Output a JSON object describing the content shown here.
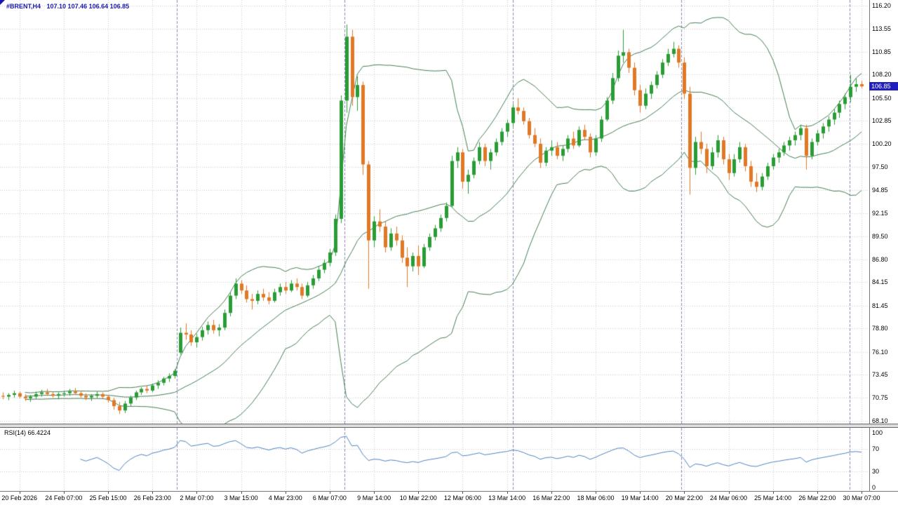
{
  "header": {
    "symbol_timeframe": "#BRENT,H4",
    "ohlc_text": "107.10 107.46 106.64 106.85"
  },
  "price_axis": {
    "labels": [
      "116.20",
      "113.55",
      "110.85",
      "108.20",
      "105.50",
      "102.85",
      "100.20",
      "97.50",
      "94.85",
      "92.15",
      "89.50",
      "86.80",
      "84.15",
      "81.45",
      "78.80",
      "76.10",
      "73.45",
      "70.75",
      "68.10"
    ],
    "current_price_label": "106.85"
  },
  "rsi_panel": {
    "label": "RSI(14) 66.4224",
    "period": 14,
    "current_value": 66.4224,
    "scale_labels": [
      "100",
      "70",
      "30",
      "0"
    ],
    "scale_values": [
      100,
      70,
      30,
      0
    ],
    "level_lines": [
      70,
      30
    ]
  },
  "colors": {
    "background": "#ffffff",
    "grid": "#cccccc",
    "separator": "#8a8ab8",
    "bull": "#2a9c35",
    "bear": "#e07826",
    "bollinger": "#457d52",
    "rsi_line": "#4d82be",
    "axis_text": "#000000",
    "header_text": "#1818b0",
    "price_badge_bg": "#1f1fc0",
    "price_badge_text": "#ffffff",
    "panel_border": "#767676"
  },
  "chart_data": {
    "type": "candlestick",
    "symbol": "#BRENT",
    "timeframe": "H4",
    "title": "#BRENT,H4",
    "ylim": [
      68.1,
      116.2
    ],
    "overlays": [
      {
        "name": "bollinger_bands",
        "period": 20,
        "deviation": 2
      }
    ],
    "indicator": {
      "name": "RSI",
      "period": 14,
      "value": 66.4224,
      "range": [
        0,
        100
      ]
    },
    "week_separator_positions": [
      31.4,
      61.7,
      92.1,
      122.4,
      152.8
    ],
    "time_ticks": {
      "labels": [
        "20 Feb 2026",
        "24 Feb 07:00",
        "25 Feb 15:00",
        "26 Feb 23:00",
        "2 Mar 07:00",
        "3 Mar 15:00",
        "4 Mar 23:00",
        "6 Mar 07:00",
        "9 Mar 14:00",
        "10 Mar 22:00",
        "12 Mar 06:00",
        "13 Mar 14:00",
        "16 Mar 22:00",
        "18 Mar 06:00",
        "19 Mar 14:00",
        "20 Mar 22:00",
        "24 Mar 06:00",
        "25 Mar 14:00",
        "26 Mar 22:00",
        "30 Mar 07:00"
      ],
      "bar_indices": [
        3,
        11,
        19,
        27,
        35,
        43,
        51,
        59,
        67,
        75,
        83,
        91,
        99,
        107,
        115,
        123,
        131,
        139,
        147,
        155
      ]
    },
    "ohlc": [
      [
        71.0,
        71.4,
        70.6,
        70.9
      ],
      [
        70.9,
        71.3,
        70.5,
        71.1
      ],
      [
        71.1,
        71.6,
        70.8,
        71.3
      ],
      [
        71.3,
        71.5,
        70.7,
        70.9
      ],
      [
        70.9,
        71.2,
        70.4,
        70.7
      ],
      [
        70.7,
        71.1,
        70.3,
        70.9
      ],
      [
        70.9,
        71.5,
        70.6,
        71.2
      ],
      [
        71.2,
        71.7,
        70.9,
        71.4
      ],
      [
        71.4,
        71.8,
        71.0,
        71.2
      ],
      [
        71.2,
        71.5,
        70.8,
        71.0
      ],
      [
        71.0,
        71.4,
        70.6,
        71.2
      ],
      [
        71.2,
        71.6,
        70.9,
        71.3
      ],
      [
        71.3,
        71.8,
        71.0,
        71.5
      ],
      [
        71.5,
        71.9,
        71.1,
        71.3
      ],
      [
        71.3,
        71.6,
        70.8,
        71.0
      ],
      [
        71.0,
        71.3,
        70.5,
        70.8
      ],
      [
        70.8,
        71.2,
        70.4,
        71.0
      ],
      [
        71.0,
        71.5,
        70.7,
        71.2
      ],
      [
        71.2,
        71.4,
        70.6,
        70.9
      ],
      [
        70.9,
        71.1,
        70.2,
        70.5
      ],
      [
        70.5,
        70.8,
        69.4,
        69.8
      ],
      [
        69.8,
        70.3,
        68.9,
        69.3
      ],
      [
        69.3,
        70.4,
        69.0,
        70.1
      ],
      [
        70.1,
        71.0,
        69.8,
        70.8
      ],
      [
        70.8,
        71.6,
        70.5,
        71.4
      ],
      [
        71.4,
        72.0,
        71.1,
        71.8
      ],
      [
        71.8,
        72.2,
        71.3,
        71.6
      ],
      [
        71.6,
        72.4,
        71.4,
        72.2
      ],
      [
        72.2,
        72.8,
        71.8,
        72.5
      ],
      [
        72.5,
        73.2,
        72.2,
        73.0
      ],
      [
        73.0,
        73.6,
        72.6,
        73.3
      ],
      [
        73.3,
        74.1,
        73.0,
        73.9
      ],
      [
        76.0,
        78.9,
        75.8,
        78.3
      ],
      [
        78.3,
        79.4,
        77.5,
        78.1
      ],
      [
        78.1,
        78.6,
        76.8,
        77.2
      ],
      [
        77.2,
        78.2,
        76.6,
        77.8
      ],
      [
        77.8,
        79.0,
        77.4,
        78.6
      ],
      [
        78.6,
        79.6,
        78.1,
        79.2
      ],
      [
        79.2,
        79.8,
        78.2,
        78.6
      ],
      [
        78.6,
        79.3,
        77.9,
        78.9
      ],
      [
        78.9,
        81.0,
        78.6,
        80.6
      ],
      [
        80.6,
        83.0,
        80.2,
        82.6
      ],
      [
        82.6,
        84.6,
        82.2,
        84.0
      ],
      [
        84.0,
        84.4,
        82.8,
        83.2
      ],
      [
        83.2,
        83.8,
        81.8,
        82.2
      ],
      [
        82.2,
        82.8,
        81.0,
        82.0
      ],
      [
        82.0,
        83.2,
        81.6,
        82.8
      ],
      [
        82.8,
        83.4,
        82.0,
        82.4
      ],
      [
        82.4,
        83.0,
        81.6,
        82.0
      ],
      [
        82.0,
        83.4,
        81.8,
        83.0
      ],
      [
        83.0,
        84.0,
        82.6,
        83.6
      ],
      [
        83.6,
        84.2,
        82.8,
        83.2
      ],
      [
        83.2,
        84.4,
        83.0,
        84.0
      ],
      [
        84.0,
        84.6,
        83.2,
        83.6
      ],
      [
        83.6,
        84.0,
        82.2,
        82.6
      ],
      [
        82.6,
        84.2,
        82.4,
        83.8
      ],
      [
        83.8,
        85.0,
        83.4,
        84.6
      ],
      [
        84.6,
        86.0,
        84.3,
        85.6
      ],
      [
        85.6,
        86.8,
        85.2,
        86.4
      ],
      [
        86.4,
        88.0,
        86.0,
        87.6
      ],
      [
        87.6,
        92.0,
        87.2,
        91.5
      ],
      [
        91.5,
        105.8,
        91.0,
        105.2
      ],
      [
        105.2,
        114.0,
        103.8,
        112.6
      ],
      [
        112.6,
        113.4,
        104.6,
        105.6
      ],
      [
        105.6,
        108.0,
        104.0,
        107.0
      ],
      [
        107.0,
        107.4,
        96.6,
        97.8
      ],
      [
        97.8,
        98.2,
        83.4,
        89.0
      ],
      [
        89.0,
        91.8,
        88.2,
        91.2
      ],
      [
        91.2,
        92.6,
        90.0,
        90.6
      ],
      [
        90.6,
        91.2,
        87.6,
        88.2
      ],
      [
        88.2,
        90.4,
        87.8,
        89.8
      ],
      [
        89.8,
        90.6,
        88.4,
        89.0
      ],
      [
        89.0,
        89.6,
        86.4,
        87.0
      ],
      [
        87.0,
        88.2,
        83.6,
        86.0
      ],
      [
        86.0,
        87.6,
        85.4,
        87.2
      ],
      [
        87.2,
        88.4,
        85.0,
        86.0
      ],
      [
        86.0,
        88.6,
        85.8,
        88.2
      ],
      [
        88.2,
        89.8,
        87.8,
        89.4
      ],
      [
        89.4,
        90.8,
        89.0,
        90.4
      ],
      [
        90.4,
        92.0,
        90.0,
        91.6
      ],
      [
        91.6,
        93.4,
        91.2,
        93.0
      ],
      [
        93.0,
        98.8,
        92.8,
        98.2
      ],
      [
        98.2,
        99.8,
        97.4,
        99.2
      ],
      [
        99.2,
        99.6,
        95.0,
        95.8
      ],
      [
        95.8,
        97.2,
        94.4,
        96.6
      ],
      [
        96.6,
        98.6,
        96.2,
        98.2
      ],
      [
        98.2,
        100.4,
        97.8,
        99.8
      ],
      [
        99.8,
        100.2,
        97.6,
        98.2
      ],
      [
        98.2,
        99.6,
        97.2,
        99.2
      ],
      [
        99.2,
        100.8,
        98.8,
        100.4
      ],
      [
        100.4,
        102.0,
        100.0,
        101.6
      ],
      [
        101.6,
        103.0,
        101.0,
        102.6
      ],
      [
        102.6,
        104.8,
        102.2,
        104.4
      ],
      [
        104.4,
        105.5,
        103.6,
        104.0
      ],
      [
        104.0,
        104.4,
        102.4,
        102.8
      ],
      [
        102.8,
        103.2,
        100.8,
        101.2
      ],
      [
        101.2,
        102.0,
        99.8,
        100.2
      ],
      [
        100.2,
        100.8,
        97.4,
        98.0
      ],
      [
        98.0,
        99.8,
        97.6,
        99.4
      ],
      [
        99.4,
        100.6,
        98.8,
        99.8
      ],
      [
        99.8,
        100.4,
        98.4,
        98.8
      ],
      [
        98.8,
        100.0,
        98.2,
        99.6
      ],
      [
        99.6,
        101.2,
        99.2,
        100.8
      ],
      [
        100.8,
        101.6,
        99.6,
        100.0
      ],
      [
        100.0,
        102.2,
        99.8,
        101.8
      ],
      [
        101.8,
        102.4,
        100.6,
        101.0
      ],
      [
        101.0,
        101.4,
        98.6,
        99.2
      ],
      [
        99.2,
        101.2,
        98.8,
        100.8
      ],
      [
        100.8,
        103.4,
        100.4,
        103.0
      ],
      [
        103.0,
        105.6,
        102.8,
        105.2
      ],
      [
        105.2,
        108.4,
        104.8,
        107.8
      ],
      [
        107.8,
        111.0,
        107.4,
        110.4
      ],
      [
        110.4,
        113.4,
        109.6,
        110.8
      ],
      [
        110.8,
        111.2,
        108.4,
        109.0
      ],
      [
        109.0,
        109.6,
        105.8,
        106.4
      ],
      [
        106.4,
        107.0,
        103.8,
        104.6
      ],
      [
        104.6,
        106.6,
        104.2,
        106.0
      ],
      [
        106.0,
        107.4,
        105.4,
        107.0
      ],
      [
        107.0,
        108.6,
        106.6,
        108.2
      ],
      [
        108.2,
        110.0,
        107.8,
        109.6
      ],
      [
        109.6,
        111.2,
        109.2,
        110.6
      ],
      [
        110.6,
        112.0,
        110.2,
        111.2
      ],
      [
        111.2,
        111.6,
        109.0,
        109.6
      ],
      [
        109.6,
        110.2,
        105.4,
        106.0
      ],
      [
        106.0,
        106.8,
        94.3,
        97.4
      ],
      [
        97.4,
        101.0,
        96.6,
        100.4
      ],
      [
        100.4,
        101.6,
        99.0,
        99.6
      ],
      [
        99.6,
        100.2,
        96.8,
        97.6
      ],
      [
        97.6,
        99.8,
        97.2,
        99.2
      ],
      [
        99.2,
        101.2,
        98.6,
        100.6
      ],
      [
        100.6,
        101.0,
        97.8,
        98.4
      ],
      [
        98.4,
        99.0,
        96.0,
        96.8
      ],
      [
        96.8,
        99.0,
        96.4,
        98.4
      ],
      [
        98.4,
        100.4,
        98.0,
        99.8
      ],
      [
        99.8,
        100.2,
        97.0,
        97.6
      ],
      [
        97.6,
        98.2,
        95.2,
        95.8
      ],
      [
        95.8,
        96.8,
        94.6,
        95.2
      ],
      [
        95.2,
        96.8,
        94.8,
        96.4
      ],
      [
        96.4,
        98.0,
        96.0,
        97.6
      ],
      [
        97.6,
        99.0,
        97.2,
        98.6
      ],
      [
        98.6,
        99.6,
        98.0,
        99.2
      ],
      [
        99.2,
        100.4,
        98.8,
        100.0
      ],
      [
        100.0,
        101.0,
        99.4,
        100.6
      ],
      [
        100.6,
        101.6,
        100.0,
        101.2
      ],
      [
        101.2,
        102.4,
        100.6,
        102.0
      ],
      [
        102.0,
        102.4,
        97.2,
        98.8
      ],
      [
        98.8,
        100.8,
        98.4,
        100.4
      ],
      [
        100.4,
        101.8,
        100.0,
        101.4
      ],
      [
        101.4,
        102.6,
        100.8,
        102.2
      ],
      [
        102.2,
        103.4,
        101.6,
        103.0
      ],
      [
        103.0,
        104.2,
        102.4,
        103.8
      ],
      [
        103.8,
        105.2,
        103.2,
        104.8
      ],
      [
        104.8,
        106.0,
        104.2,
        105.6
      ],
      [
        105.6,
        108.2,
        105.0,
        106.8
      ],
      [
        106.8,
        107.8,
        106.2,
        107.1
      ],
      [
        107.1,
        107.46,
        106.64,
        106.85
      ]
    ]
  }
}
